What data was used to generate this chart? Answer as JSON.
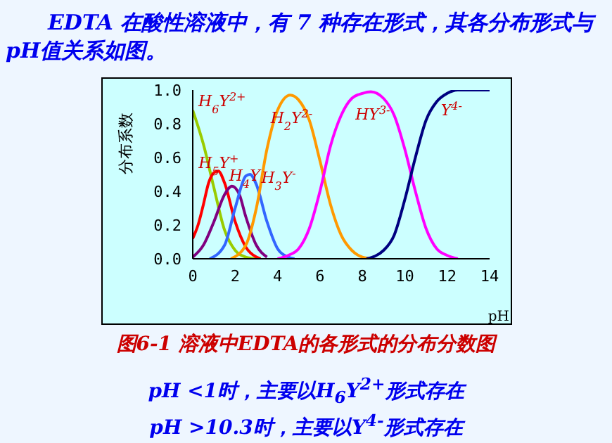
{
  "chart_data": {
    "type": "line",
    "title": "EDTA 在酸性溶液中，有 7 种存在形式，其各分布形式与pH值关系如图。",
    "xlabel": "pH",
    "ylabel": "分布系数",
    "xlim": [
      0,
      14
    ],
    "xticks": [
      0,
      2,
      4,
      6,
      8,
      10,
      12,
      14
    ],
    "ylim": [
      0,
      1
    ],
    "yticks": [
      {
        "value": 0,
        "label": "0.0"
      },
      {
        "value": 0.2,
        "label": "0.2"
      },
      {
        "value": 0.4,
        "label": "0.4"
      },
      {
        "value": 0.6,
        "label": "0.6"
      },
      {
        "value": 0.8,
        "label": "0.8"
      },
      {
        "value": 1,
        "label": "1.0"
      }
    ],
    "grid": false,
    "series": [
      {
        "name": "H$_{6}$Y$^{2+}$",
        "color": "#99cc00",
        "x": [
          0,
          0.5,
          1,
          1.5,
          2,
          2.5,
          3
        ],
        "values": [
          0.88,
          0.68,
          0.42,
          0.17,
          0.05,
          0.01,
          0
        ]
      },
      {
        "name": "H$_{5}$Y$^{+}$",
        "color": "#ff0000",
        "x": [
          0,
          0.25,
          0.5,
          0.75,
          1,
          1.2,
          1.5,
          2,
          2.5,
          3,
          3.2
        ],
        "values": [
          0.12,
          0.2,
          0.32,
          0.45,
          0.51,
          0.52,
          0.45,
          0.22,
          0.07,
          0.01,
          0
        ]
      },
      {
        "name": "H$_{4}$Y",
        "color": "#800080",
        "x": [
          0,
          0.5,
          1,
          1.5,
          1.85,
          2.2,
          2.5,
          3,
          3.5
        ],
        "values": [
          0.01,
          0.08,
          0.22,
          0.38,
          0.43,
          0.38,
          0.25,
          0.08,
          0.01
        ]
      },
      {
        "name": "H$_{3}$Y$^{-}$",
        "color": "#3366ff",
        "x": [
          0.8,
          1.5,
          2,
          2.5,
          2.7,
          3,
          3.5,
          4,
          4.5,
          4.8
        ],
        "values": [
          0,
          0.08,
          0.3,
          0.49,
          0.5,
          0.44,
          0.22,
          0.06,
          0.01,
          0
        ]
      },
      {
        "name": "H$_{2}$Y$^{2-}$",
        "color": "#ff9900",
        "x": [
          1.8,
          2.5,
          3,
          3.5,
          4,
          4.6,
          5,
          5.5,
          6,
          6.5,
          7,
          7.5,
          8,
          8.5
        ],
        "values": [
          0,
          0.08,
          0.3,
          0.65,
          0.88,
          0.97,
          0.94,
          0.82,
          0.58,
          0.32,
          0.14,
          0.05,
          0.01,
          0
        ]
      },
      {
        "name": "HY$^{3-}$",
        "color": "#ff00ff",
        "x": [
          4,
          4.5,
          5,
          5.5,
          6,
          6.5,
          7,
          7.5,
          8,
          8.4,
          9,
          9.5,
          10,
          10.5,
          11,
          11.5,
          12,
          12.5
        ],
        "values": [
          0,
          0.02,
          0.06,
          0.18,
          0.4,
          0.67,
          0.85,
          0.95,
          0.98,
          0.99,
          0.95,
          0.85,
          0.65,
          0.4,
          0.18,
          0.06,
          0.02,
          0
        ]
      },
      {
        "name": "Y$^{4-}$",
        "color": "#000080",
        "x": [
          8.2,
          9,
          9.5,
          10,
          10.5,
          11,
          11.5,
          12,
          12.5,
          14
        ],
        "values": [
          0,
          0.05,
          0.14,
          0.35,
          0.6,
          0.82,
          0.93,
          0.98,
          1,
          1
        ]
      }
    ],
    "annotations": [
      "图6-1 溶液中EDTA的各形式的分布分数图",
      "pH <1时，主要以H$_{6}$Y$^{2+}$形式存在",
      "pH >10.3时，主要以Y$^{4-}$形式存在"
    ]
  }
}
